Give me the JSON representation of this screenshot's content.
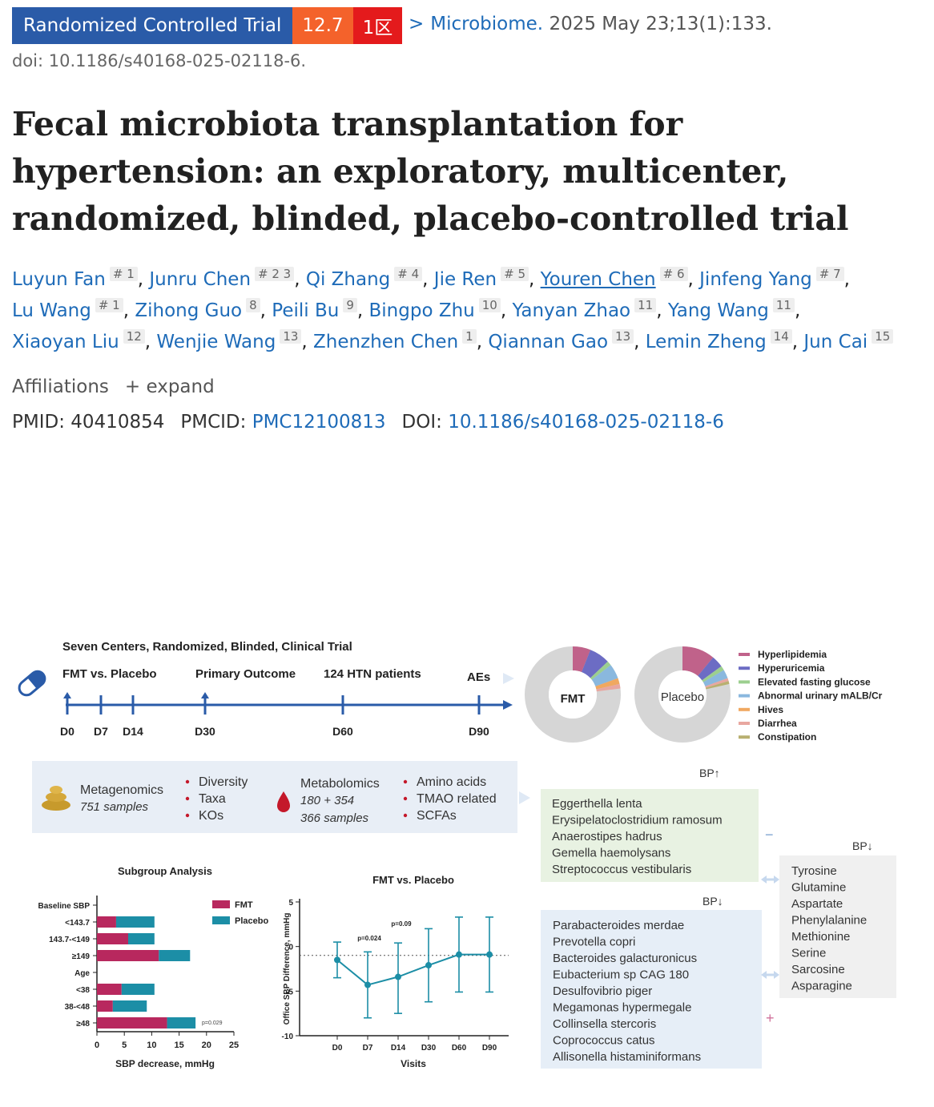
{
  "header": {
    "type_badge": "Randomized Controlled Trial",
    "impact_factor": "12.7",
    "zone": "1区",
    "chevron": ">",
    "journal": "Microbiome.",
    "citation": "2025 May 23;13(1):133.",
    "doi_line": "doi: 10.1186/s40168-025-02118-6."
  },
  "title": "Fecal microbiota transplantation for hypertension: an exploratory, multicenter, randomized, blinded, placebo-controlled trial",
  "authors": [
    {
      "name": "Luyun Fan",
      "sup": "# 1"
    },
    {
      "name": "Junru Chen",
      "sup": "# 2 3"
    },
    {
      "name": "Qi Zhang",
      "sup": "# 4"
    },
    {
      "name": "Jie Ren",
      "sup": "# 5"
    },
    {
      "name": "Youren Chen",
      "sup": "# 6"
    },
    {
      "name": "Jinfeng Yang",
      "sup": "# 7"
    },
    {
      "name": "Lu Wang",
      "sup": "# 1"
    },
    {
      "name": "Zihong Guo",
      "sup": "8"
    },
    {
      "name": "Peili Bu",
      "sup": "9"
    },
    {
      "name": "Bingpo Zhu",
      "sup": "10"
    },
    {
      "name": "Yanyan Zhao",
      "sup": "11"
    },
    {
      "name": "Yang Wang",
      "sup": "11"
    },
    {
      "name": "Xiaoyan Liu",
      "sup": "12"
    },
    {
      "name": "Wenjie Wang",
      "sup": "13"
    },
    {
      "name": "Zhenzhen Chen",
      "sup": "1"
    },
    {
      "name": "Qiannan Gao",
      "sup": "13"
    },
    {
      "name": "Lemin Zheng",
      "sup": "14"
    },
    {
      "name": "Jun Cai",
      "sup": "15"
    }
  ],
  "affiliations": {
    "label": "Affiliations",
    "expand": "+ expand"
  },
  "ids": {
    "pmid_label": "PMID:",
    "pmid": "40410854",
    "pmcid_label": "PMCID:",
    "pmcid": "PMC12100813",
    "doi_label": "DOI:",
    "doi": "10.1186/s40168-025-02118-6"
  },
  "figure": {
    "trial_title": "Seven Centers, Randomized,  Blinded, Clinical Trial",
    "timeline_labels": [
      "FMT vs. Placebo",
      "Primary Outcome",
      "124 HTN patients",
      "AEs"
    ],
    "timeline_days": [
      "D0",
      "D7",
      "D14",
      "D30",
      "D60",
      "D90"
    ],
    "donut_fmt": "FMT",
    "donut_placebo": "Placebo",
    "ae_legend": [
      {
        "label": "Hyperlipidemia",
        "color": "#c0628a"
      },
      {
        "label": "Hyperuricemia",
        "color": "#6c6cc4"
      },
      {
        "label": "Elevated fasting glucose",
        "color": "#9ccf8f"
      },
      {
        "label": "Abnormal urinary mALB/Cr",
        "color": "#8ab8de"
      },
      {
        "label": "Hives",
        "color": "#f0a860"
      },
      {
        "label": "Diarrhea",
        "color": "#e8a7a0"
      },
      {
        "label": "Constipation",
        "color": "#b8b070"
      }
    ],
    "metagenomics": {
      "title": "Metagenomics",
      "samples": "751 samples",
      "items": [
        "Diversity",
        "Taxa",
        "KOs"
      ]
    },
    "metabolomics": {
      "title": "Metabolomics",
      "samples_1": "180 + 354",
      "samples_2": "366 samples",
      "items": [
        "Amino acids",
        "TMAO related",
        "SCFAs"
      ]
    },
    "bp_up_label": "BP↑",
    "bp_up_taxa": [
      "Eggerthella lenta",
      "Erysipelatoclostridium ramosum",
      "Anaerostipes hadrus",
      "Gemella haemolysans",
      "Streptococcus vestibularis"
    ],
    "bp_down_label": "BP↓",
    "bp_down_taxa": [
      "Parabacteroides merdae",
      "Prevotella copri",
      "Bacteroides galacturonicus",
      "Eubacterium sp CAG 180",
      "Desulfovibrio piger",
      "Megamonas hypermegale",
      "Collinsella stercoris",
      "Coprococcus catus",
      "Allisonella histaminiformans"
    ],
    "bp_down_metab_label": "BP↓",
    "bp_down_metabolites": [
      "Tyrosine",
      "Glutamine",
      "Aspartate",
      "Phenylalanine",
      "Methionine",
      "Serine",
      "Sarcosine",
      "Asparagine"
    ],
    "minus_sign": "−",
    "plus_sign": "+"
  },
  "chart_data": [
    {
      "type": "bar",
      "title": "Subgroup Analysis",
      "xlabel": "SBP decrease, mmHg",
      "ylabel": "",
      "xlim": [
        0,
        25
      ],
      "xticks": [
        "0",
        "5",
        "10",
        "15",
        "20",
        "25"
      ],
      "categories": [
        "Baseline SBP",
        "<143.7",
        "143.7-<149",
        "≥149",
        "Age",
        "<38",
        "38-<48",
        "≥48"
      ],
      "series": [
        {
          "name": "FMT",
          "color": "#b8285e",
          "values": [
            null,
            3.5,
            5.7,
            11.3,
            null,
            4.5,
            2.9,
            12.8
          ]
        },
        {
          "name": "Placebo",
          "color": "#1c8ea6",
          "values": [
            null,
            7.0,
            4.8,
            5.7,
            null,
            6.0,
            6.2,
            5.2
          ]
        }
      ],
      "annotation": "p=0.029"
    },
    {
      "type": "line",
      "title": "FMT vs. Placebo",
      "xlabel": "Visits",
      "ylabel": "Office SBP Difference, mmHg",
      "ylim": [
        -10,
        5
      ],
      "yticks": [
        "5",
        "0",
        "-5",
        "-10"
      ],
      "x": [
        "D0",
        "D7",
        "D14",
        "D30",
        "D60",
        "D90"
      ],
      "y": [
        -1.5,
        -4.3,
        -3.4,
        -2.1,
        -0.9,
        -0.9
      ],
      "err_low": [
        -3.5,
        -8.0,
        -7.5,
        -6.2,
        -5.1,
        -5.1
      ],
      "err_high": [
        0.5,
        -0.6,
        0.4,
        2.0,
        3.3,
        3.3
      ],
      "reference_line": -1,
      "annotations": [
        {
          "label": "p=0.024",
          "at": "D7"
        },
        {
          "label": "p=0.09",
          "at": "D14"
        }
      ],
      "color": "#1c8ea6"
    }
  ]
}
